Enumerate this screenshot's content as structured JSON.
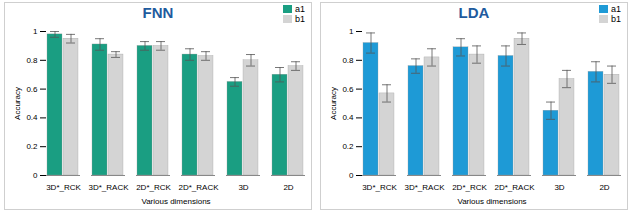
{
  "chart_data": [
    {
      "type": "bar",
      "title": "FNN",
      "x_label": "Various dimensions",
      "y_label": "Accuracy",
      "categories": [
        "3D*_RCK",
        "3D*_RACK",
        "2D*_RCK",
        "2D*_RACK",
        "3D",
        "2D"
      ],
      "series": [
        {
          "name": "a1",
          "color": "#1a9e82",
          "values": [
            0.98,
            0.91,
            0.9,
            0.84,
            0.65,
            0.7
          ],
          "errors": [
            0.02,
            0.04,
            0.03,
            0.04,
            0.03,
            0.05
          ]
        },
        {
          "name": "b1",
          "color": "#d4d4d4",
          "values": [
            0.95,
            0.84,
            0.9,
            0.83,
            0.8,
            0.76
          ],
          "errors": [
            0.03,
            0.02,
            0.03,
            0.03,
            0.04,
            0.03
          ]
        }
      ],
      "ylim": [
        0,
        1
      ],
      "yticks": [
        0,
        0.2,
        0.4,
        0.6,
        0.8,
        1
      ],
      "legend": "top-right"
    },
    {
      "type": "bar",
      "title": "LDA",
      "x_label": "Various dimensions",
      "y_label": "Accuracy",
      "categories": [
        "3D*_RCK",
        "3D*_RACK",
        "2D*_RCK",
        "2D*_RACK",
        "3D",
        "2D"
      ],
      "series": [
        {
          "name": "a1",
          "color": "#1e9ad6",
          "values": [
            0.92,
            0.76,
            0.89,
            0.83,
            0.45,
            0.72
          ],
          "errors": [
            0.07,
            0.05,
            0.06,
            0.07,
            0.06,
            0.07
          ]
        },
        {
          "name": "b1",
          "color": "#d4d4d4",
          "values": [
            0.57,
            0.82,
            0.84,
            0.95,
            0.67,
            0.7
          ],
          "errors": [
            0.06,
            0.06,
            0.06,
            0.04,
            0.06,
            0.06
          ]
        }
      ],
      "ylim": [
        0,
        1
      ],
      "yticks": [
        0,
        0.2,
        0.4,
        0.6,
        0.8,
        1
      ],
      "legend": "top-right"
    }
  ]
}
